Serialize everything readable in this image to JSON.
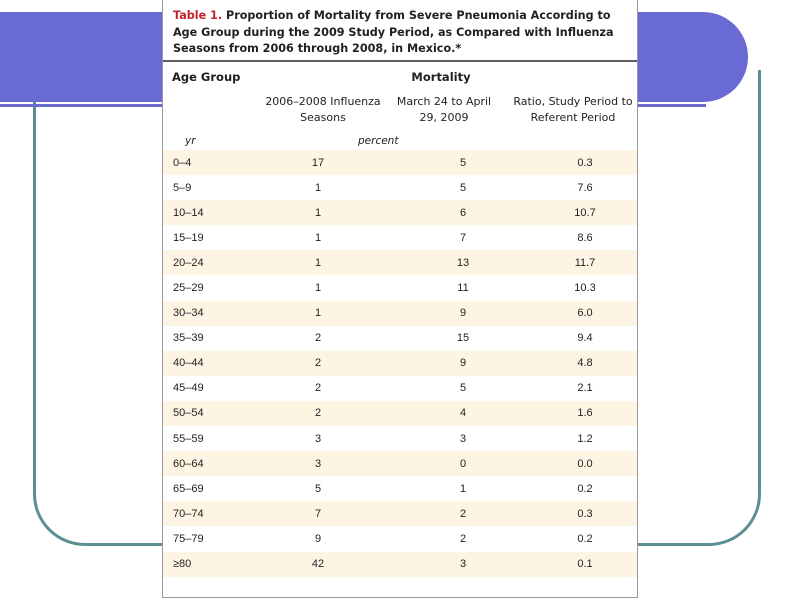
{
  "table": {
    "caption_label": "Table 1.",
    "caption_text": " Proportion of Mortality from Severe Pneumonia According to Age Group during the 2009 Study Period, as Compared with Influenza Seasons from 2006 through 2008, in Mexico.*",
    "header": {
      "age_group": "Age Group",
      "mortality": "Mortality",
      "col1": "2006–2008 Influenza Seasons",
      "col2": "March 24 to April 29, 2009",
      "col3": "Ratio, Study Period to Referent Period",
      "unit_age": "yr",
      "unit_values": "percent"
    },
    "rows": [
      {
        "age": "0–4",
        "seasons": "17",
        "study": "5",
        "ratio": "0.3"
      },
      {
        "age": "5–9",
        "seasons": "1",
        "study": "5",
        "ratio": "7.6"
      },
      {
        "age": "10–14",
        "seasons": "1",
        "study": "6",
        "ratio": "10.7"
      },
      {
        "age": "15–19",
        "seasons": "1",
        "study": "7",
        "ratio": "8.6"
      },
      {
        "age": "20–24",
        "seasons": "1",
        "study": "13",
        "ratio": "11.7"
      },
      {
        "age": "25–29",
        "seasons": "1",
        "study": "11",
        "ratio": "10.3"
      },
      {
        "age": "30–34",
        "seasons": "1",
        "study": "9",
        "ratio": "6.0"
      },
      {
        "age": "35–39",
        "seasons": "2",
        "study": "15",
        "ratio": "9.4"
      },
      {
        "age": "40–44",
        "seasons": "2",
        "study": "9",
        "ratio": "4.8"
      },
      {
        "age": "45–49",
        "seasons": "2",
        "study": "5",
        "ratio": "2.1"
      },
      {
        "age": "50–54",
        "seasons": "2",
        "study": "4",
        "ratio": "1.6"
      },
      {
        "age": "55–59",
        "seasons": "3",
        "study": "3",
        "ratio": "1.2"
      },
      {
        "age": "60–64",
        "seasons": "3",
        "study": "0",
        "ratio": "0.0"
      },
      {
        "age": "65–69",
        "seasons": "5",
        "study": "1",
        "ratio": "0.2"
      },
      {
        "age": "70–74",
        "seasons": "7",
        "study": "2",
        "ratio": "0.3"
      },
      {
        "age": "75–79",
        "seasons": "9",
        "study": "2",
        "ratio": "0.2"
      },
      {
        "age": "≥80",
        "seasons": "42",
        "study": "3",
        "ratio": "0.1"
      }
    ]
  },
  "colors": {
    "caption_label": "#c4232c",
    "row_stripe": "#fdf4e4",
    "slide_accent": "#6a6ad4",
    "slide_outline": "#5b8f92"
  }
}
